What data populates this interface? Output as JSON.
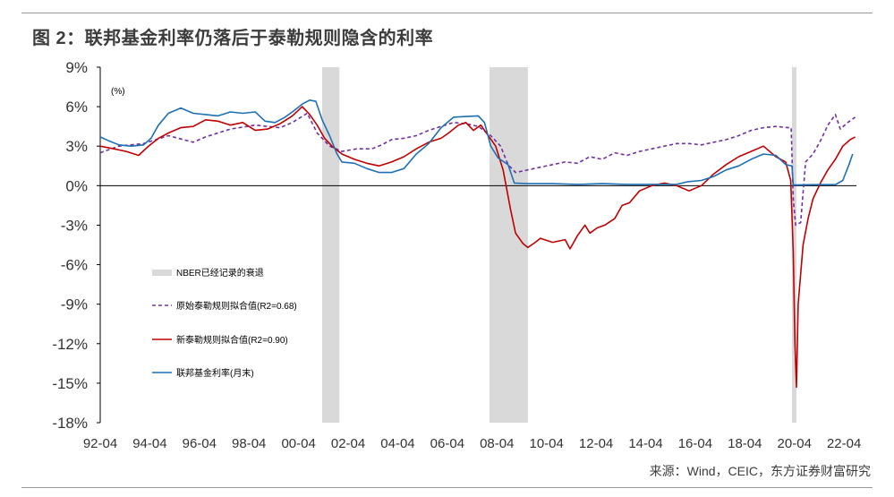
{
  "title": "图 2：联邦基金利率仍落后于泰勒规则隐含的利率",
  "source": "来源：Wind，CEIC，东方证券财富研究",
  "chart_data": {
    "type": "line",
    "y_unit_label": "(%)",
    "ylim": [
      -18,
      9
    ],
    "yticks": [
      9,
      6,
      3,
      0,
      -3,
      -6,
      -9,
      -12,
      -15,
      -18
    ],
    "ytick_labels": [
      "9%",
      "6%",
      "3%",
      "0%",
      "-3%",
      "-6%",
      "-9%",
      "-12%",
      "-15%",
      "-18%"
    ],
    "xlim": [
      1992.25,
      2022.75
    ],
    "xticks": [
      1992.25,
      1994.25,
      1996.25,
      1998.25,
      2000.25,
      2002.25,
      2004.25,
      2006.25,
      2008.25,
      2010.25,
      2012.25,
      2014.25,
      2016.25,
      2018.25,
      2020.25,
      2022.25
    ],
    "xtick_labels": [
      "92-04",
      "94-04",
      "96-04",
      "98-04",
      "00-04",
      "02-04",
      "04-04",
      "06-04",
      "08-04",
      "10-04",
      "12-04",
      "14-04",
      "16-04",
      "18-04",
      "20-04",
      "22-04"
    ],
    "grid": false,
    "legend_position": "lower-left",
    "recessions": [
      [
        2001.2,
        2001.9
      ],
      [
        2007.95,
        2009.5
      ],
      [
        2020.15,
        2020.33
      ]
    ],
    "legend": {
      "recession": "NBER已经记录的衰退",
      "original": "原始泰勒规则拟合值(R2=0.68)",
      "new": "新泰勒规则拟合值(R2=0.90)",
      "ffr": "联邦基金利率(月末)"
    },
    "series": [
      {
        "name": "原始泰勒规则拟合值(R2=0.68)",
        "key": "original",
        "color": "#7030a0",
        "dash": "4,3",
        "points": [
          [
            1992.25,
            2.5
          ],
          [
            1993.0,
            3.0
          ],
          [
            1994.0,
            3.2
          ],
          [
            1995.0,
            3.8
          ],
          [
            1996.0,
            3.3
          ],
          [
            1996.5,
            3.7
          ],
          [
            1997.5,
            4.3
          ],
          [
            1998.5,
            4.6
          ],
          [
            1999.5,
            4.4
          ],
          [
            2000.0,
            4.8
          ],
          [
            2000.6,
            5.5
          ],
          [
            2001.0,
            4.0
          ],
          [
            2001.5,
            3.0
          ],
          [
            2002.0,
            2.6
          ],
          [
            2002.6,
            2.8
          ],
          [
            2003.2,
            2.8
          ],
          [
            2003.6,
            3.1
          ],
          [
            2004.0,
            3.5
          ],
          [
            2004.5,
            3.6
          ],
          [
            2005.0,
            3.8
          ],
          [
            2005.5,
            4.2
          ],
          [
            2006.0,
            4.5
          ],
          [
            2006.5,
            4.8
          ],
          [
            2007.0,
            4.7
          ],
          [
            2007.5,
            4.5
          ],
          [
            2008.0,
            3.8
          ],
          [
            2008.4,
            3.0
          ],
          [
            2008.7,
            1.6
          ],
          [
            2009.0,
            1.0
          ],
          [
            2009.5,
            1.2
          ],
          [
            2010.0,
            1.4
          ],
          [
            2010.5,
            1.6
          ],
          [
            2011.0,
            1.8
          ],
          [
            2011.5,
            1.7
          ],
          [
            2012.0,
            2.2
          ],
          [
            2012.5,
            2.0
          ],
          [
            2013.0,
            2.5
          ],
          [
            2013.5,
            2.3
          ],
          [
            2014.0,
            2.6
          ],
          [
            2014.5,
            2.8
          ],
          [
            2015.0,
            3.0
          ],
          [
            2015.5,
            3.2
          ],
          [
            2016.0,
            3.2
          ],
          [
            2016.5,
            3.1
          ],
          [
            2017.0,
            3.3
          ],
          [
            2017.5,
            3.5
          ],
          [
            2018.0,
            3.8
          ],
          [
            2018.5,
            4.2
          ],
          [
            2019.0,
            4.4
          ],
          [
            2019.5,
            4.5
          ],
          [
            2020.0,
            4.4
          ],
          [
            2020.12,
            4.4
          ],
          [
            2020.2,
            -1.0
          ],
          [
            2020.3,
            -3.0
          ],
          [
            2020.5,
            -2.8
          ],
          [
            2020.7,
            1.8
          ],
          [
            2021.0,
            2.4
          ],
          [
            2021.3,
            3.4
          ],
          [
            2021.6,
            4.6
          ],
          [
            2021.9,
            5.4
          ],
          [
            2022.1,
            4.3
          ],
          [
            2022.4,
            4.8
          ],
          [
            2022.7,
            5.2
          ]
        ]
      },
      {
        "name": "新泰勒规则拟合值(R2=0.90)",
        "key": "new",
        "color": "#c00000",
        "dash": "",
        "points": [
          [
            1992.25,
            3.0
          ],
          [
            1992.8,
            2.8
          ],
          [
            1993.3,
            2.6
          ],
          [
            1993.8,
            2.3
          ],
          [
            1994.2,
            3.0
          ],
          [
            1994.6,
            3.6
          ],
          [
            1995.0,
            4.0
          ],
          [
            1995.5,
            4.4
          ],
          [
            1996.0,
            4.5
          ],
          [
            1996.5,
            5.0
          ],
          [
            1997.0,
            4.9
          ],
          [
            1997.5,
            4.6
          ],
          [
            1998.0,
            4.8
          ],
          [
            1998.5,
            4.2
          ],
          [
            1999.0,
            4.3
          ],
          [
            1999.5,
            4.7
          ],
          [
            2000.0,
            5.3
          ],
          [
            2000.4,
            6.0
          ],
          [
            2000.7,
            5.4
          ],
          [
            2001.0,
            4.6
          ],
          [
            2001.3,
            3.6
          ],
          [
            2001.6,
            3.0
          ],
          [
            2002.0,
            2.4
          ],
          [
            2002.5,
            2.0
          ],
          [
            2003.0,
            1.7
          ],
          [
            2003.5,
            1.5
          ],
          [
            2004.0,
            1.8
          ],
          [
            2004.5,
            2.2
          ],
          [
            2005.0,
            2.8
          ],
          [
            2005.5,
            3.3
          ],
          [
            2006.0,
            3.6
          ],
          [
            2006.3,
            4.0
          ],
          [
            2006.7,
            4.6
          ],
          [
            2007.0,
            4.8
          ],
          [
            2007.3,
            4.2
          ],
          [
            2007.6,
            4.6
          ],
          [
            2007.9,
            3.8
          ],
          [
            2008.2,
            3.0
          ],
          [
            2008.5,
            1.2
          ],
          [
            2008.8,
            -1.8
          ],
          [
            2009.0,
            -3.6
          ],
          [
            2009.3,
            -4.4
          ],
          [
            2009.5,
            -4.7
          ],
          [
            2009.8,
            -4.3
          ],
          [
            2010.0,
            -4.0
          ],
          [
            2010.5,
            -4.3
          ],
          [
            2011.0,
            -4.1
          ],
          [
            2011.2,
            -4.8
          ],
          [
            2011.5,
            -3.8
          ],
          [
            2011.8,
            -3.0
          ],
          [
            2012.0,
            -3.6
          ],
          [
            2012.3,
            -3.2
          ],
          [
            2012.6,
            -3.0
          ],
          [
            2013.0,
            -2.5
          ],
          [
            2013.3,
            -1.5
          ],
          [
            2013.6,
            -1.3
          ],
          [
            2014.0,
            -0.4
          ],
          [
            2014.5,
            0.0
          ],
          [
            2015.0,
            0.2
          ],
          [
            2015.5,
            0.0
          ],
          [
            2016.0,
            -0.4
          ],
          [
            2016.5,
            0.0
          ],
          [
            2017.0,
            0.9
          ],
          [
            2017.5,
            1.6
          ],
          [
            2018.0,
            2.2
          ],
          [
            2018.5,
            2.6
          ],
          [
            2019.0,
            3.0
          ],
          [
            2019.5,
            2.2
          ],
          [
            2019.9,
            1.8
          ],
          [
            2020.1,
            0.4
          ],
          [
            2020.2,
            -5.0
          ],
          [
            2020.27,
            -12.0
          ],
          [
            2020.33,
            -15.3
          ],
          [
            2020.4,
            -9.0
          ],
          [
            2020.6,
            -4.5
          ],
          [
            2020.8,
            -2.5
          ],
          [
            2021.0,
            -1.0
          ],
          [
            2021.3,
            0.2
          ],
          [
            2021.6,
            1.2
          ],
          [
            2021.9,
            2.0
          ],
          [
            2022.2,
            3.0
          ],
          [
            2022.5,
            3.5
          ],
          [
            2022.7,
            3.7
          ]
        ]
      },
      {
        "name": "联邦基金利率(月末)",
        "key": "ffr",
        "color": "#1f6fb4",
        "dash": "",
        "points": [
          [
            1992.25,
            3.7
          ],
          [
            1992.6,
            3.4
          ],
          [
            1993.0,
            3.1
          ],
          [
            1993.5,
            3.0
          ],
          [
            1994.0,
            3.1
          ],
          [
            1994.3,
            3.6
          ],
          [
            1994.6,
            4.6
          ],
          [
            1995.0,
            5.5
          ],
          [
            1995.5,
            5.9
          ],
          [
            1996.0,
            5.5
          ],
          [
            1996.5,
            5.4
          ],
          [
            1997.0,
            5.3
          ],
          [
            1997.5,
            5.6
          ],
          [
            1998.0,
            5.5
          ],
          [
            1998.5,
            5.6
          ],
          [
            1998.9,
            4.9
          ],
          [
            1999.3,
            4.8
          ],
          [
            1999.7,
            5.2
          ],
          [
            2000.0,
            5.6
          ],
          [
            2000.4,
            6.2
          ],
          [
            2000.7,
            6.5
          ],
          [
            2000.95,
            6.4
          ],
          [
            2001.2,
            5.0
          ],
          [
            2001.5,
            3.8
          ],
          [
            2001.8,
            2.4
          ],
          [
            2002.0,
            1.8
          ],
          [
            2002.5,
            1.7
          ],
          [
            2003.0,
            1.3
          ],
          [
            2003.5,
            1.0
          ],
          [
            2004.0,
            1.0
          ],
          [
            2004.5,
            1.3
          ],
          [
            2005.0,
            2.4
          ],
          [
            2005.5,
            3.2
          ],
          [
            2006.0,
            4.4
          ],
          [
            2006.5,
            5.2
          ],
          [
            2007.0,
            5.25
          ],
          [
            2007.5,
            5.3
          ],
          [
            2007.75,
            4.8
          ],
          [
            2008.0,
            3.0
          ],
          [
            2008.3,
            2.1
          ],
          [
            2008.7,
            1.6
          ],
          [
            2008.95,
            0.2
          ],
          [
            2009.5,
            0.15
          ],
          [
            2010.5,
            0.15
          ],
          [
            2011.5,
            0.1
          ],
          [
            2012.5,
            0.15
          ],
          [
            2013.5,
            0.1
          ],
          [
            2014.5,
            0.1
          ],
          [
            2015.5,
            0.1
          ],
          [
            2015.95,
            0.3
          ],
          [
            2016.5,
            0.4
          ],
          [
            2017.0,
            0.7
          ],
          [
            2017.5,
            1.2
          ],
          [
            2018.0,
            1.5
          ],
          [
            2018.5,
            2.0
          ],
          [
            2019.0,
            2.4
          ],
          [
            2019.5,
            2.3
          ],
          [
            2019.9,
            1.6
          ],
          [
            2020.15,
            1.5
          ],
          [
            2020.2,
            0.05
          ],
          [
            2021.0,
            0.08
          ],
          [
            2021.9,
            0.08
          ],
          [
            2022.2,
            0.4
          ],
          [
            2022.45,
            1.6
          ],
          [
            2022.6,
            2.4
          ]
        ]
      }
    ]
  }
}
